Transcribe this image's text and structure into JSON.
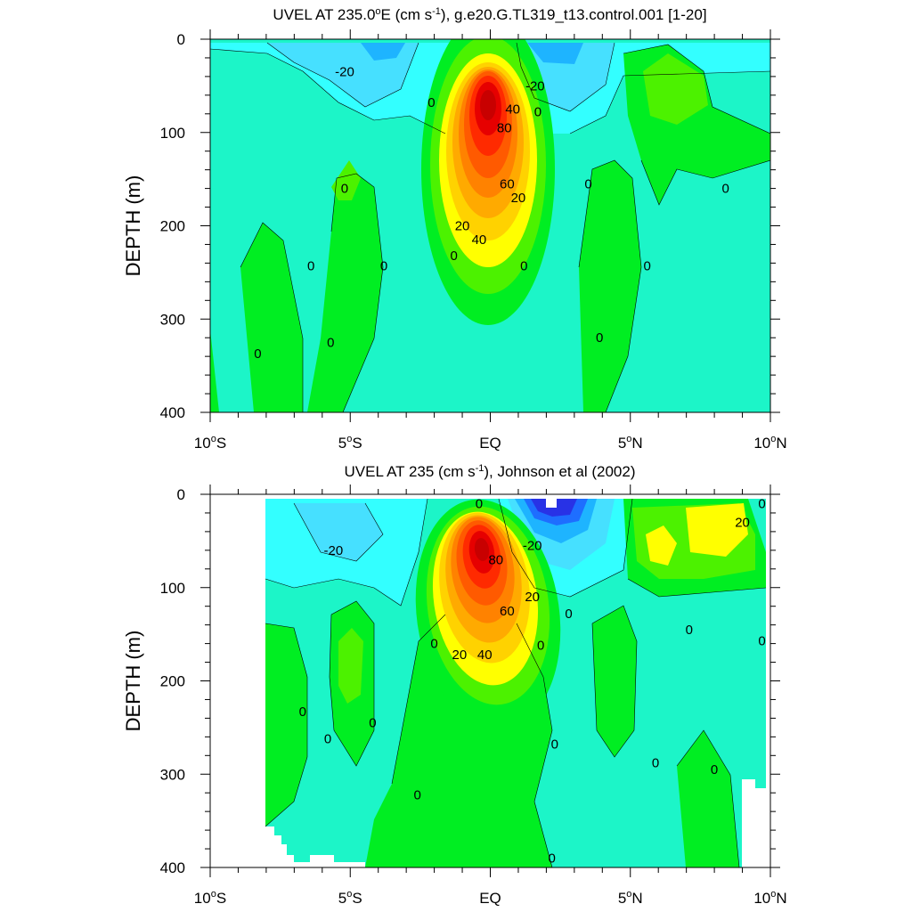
{
  "chart_data": [
    {
      "type": "contour",
      "title": "UVEL AT 235.0°E (cm s⁻¹), g.e20.G.TL319_t13.control.001 [1-20]",
      "title_parts": [
        "UVEL AT 235.0",
        "o",
        "E (cm s",
        "-1",
        "), g.e20.G.TL319_t13.control.001 [1-20]"
      ],
      "ylabel": "DEPTH (m)",
      "xlim": [
        -10,
        10
      ],
      "ylim": [
        400,
        0
      ],
      "yticks": [
        0,
        100,
        200,
        300,
        400
      ],
      "ytick_labels": [
        "0",
        "100",
        "200",
        "300",
        "400"
      ],
      "xtick_labels": [
        {
          "text": "10",
          "sup": "o",
          "suf": "S"
        },
        {
          "text": "5",
          "sup": "o",
          "suf": "S"
        },
        {
          "text": "EQ",
          "sup": "",
          "suf": ""
        },
        {
          "text": "5",
          "sup": "o",
          "suf": "N"
        },
        {
          "text": "10",
          "sup": "o",
          "suf": "N"
        }
      ],
      "features": [
        {
          "name": "EUC core",
          "lon": 0,
          "depth": 110,
          "peak": 90
        },
        {
          "name": "surface westward flow",
          "lon": 2.3,
          "depth": 10,
          "peak": -30
        },
        {
          "name": "surface westward flow S",
          "lon": -4,
          "depth": 10,
          "peak": -25
        }
      ],
      "contour_labels": [
        {
          "text": "-20",
          "lon": -5.2,
          "depth": 35
        },
        {
          "text": "-20",
          "lon": 1.6,
          "depth": 50
        },
        {
          "text": "0",
          "lon": -2.1,
          "depth": 68
        },
        {
          "text": "0",
          "lon": 1.7,
          "depth": 78
        },
        {
          "text": "40",
          "lon": 0.8,
          "depth": 75
        },
        {
          "text": "80",
          "lon": 0.5,
          "depth": 95
        },
        {
          "text": "60",
          "lon": 0.6,
          "depth": 155
        },
        {
          "text": "20",
          "lon": 1.0,
          "depth": 170
        },
        {
          "text": "20",
          "lon": -1.0,
          "depth": 200
        },
        {
          "text": "40",
          "lon": -0.4,
          "depth": 215
        },
        {
          "text": "0",
          "lon": -5.2,
          "depth": 160
        },
        {
          "text": "0",
          "lon": 3.5,
          "depth": 155
        },
        {
          "text": "0",
          "lon": 8.4,
          "depth": 160
        },
        {
          "text": "0",
          "lon": -6.4,
          "depth": 243
        },
        {
          "text": "0",
          "lon": -3.8,
          "depth": 243
        },
        {
          "text": "0",
          "lon": -1.3,
          "depth": 232
        },
        {
          "text": "0",
          "lon": 1.2,
          "depth": 243
        },
        {
          "text": "0",
          "lon": 5.6,
          "depth": 243
        },
        {
          "text": "0",
          "lon": 3.9,
          "depth": 320
        },
        {
          "text": "0",
          "lon": -8.3,
          "depth": 337
        },
        {
          "text": "0",
          "lon": -5.7,
          "depth": 325
        }
      ]
    },
    {
      "type": "contour",
      "title": "UVEL AT 235 (cm s⁻¹), Johnson et al (2002)",
      "title_parts": [
        "UVEL AT 235 (cm s",
        "-1",
        "), Johnson et al (2002)"
      ],
      "ylabel": "DEPTH (m)",
      "xlim": [
        -10,
        10
      ],
      "ylim": [
        400,
        0
      ],
      "yticks": [
        0,
        100,
        200,
        300,
        400
      ],
      "ytick_labels": [
        "0",
        "100",
        "200",
        "300",
        "400"
      ],
      "xtick_labels": [
        {
          "text": "10",
          "sup": "o",
          "suf": "S"
        },
        {
          "text": "5",
          "sup": "o",
          "suf": "S"
        },
        {
          "text": "EQ",
          "sup": "",
          "suf": ""
        },
        {
          "text": "5",
          "sup": "o",
          "suf": "N"
        },
        {
          "text": "10",
          "sup": "o",
          "suf": "N"
        }
      ],
      "features": [
        {
          "name": "EUC core",
          "lon": -0.3,
          "depth": 85,
          "peak": 95
        },
        {
          "name": "surface westward flow",
          "lon": 2.2,
          "depth": 15,
          "peak": -45
        },
        {
          "name": "surface eastward flow N",
          "lon": 8.5,
          "depth": 30,
          "peak": 30
        }
      ],
      "contour_labels": [
        {
          "text": "0",
          "lon": -0.4,
          "depth": 10
        },
        {
          "text": "-20",
          "lon": -5.6,
          "depth": 60
        },
        {
          "text": "-20",
          "lon": 1.5,
          "depth": 55
        },
        {
          "text": "80",
          "lon": 0.2,
          "depth": 70
        },
        {
          "text": "20",
          "lon": 9.0,
          "depth": 30
        },
        {
          "text": "0",
          "lon": 9.7,
          "depth": 10
        },
        {
          "text": "20",
          "lon": 1.5,
          "depth": 110
        },
        {
          "text": "60",
          "lon": 0.6,
          "depth": 125
        },
        {
          "text": "0",
          "lon": 2.8,
          "depth": 128
        },
        {
          "text": "0",
          "lon": -2.0,
          "depth": 160
        },
        {
          "text": "20",
          "lon": -1.1,
          "depth": 172
        },
        {
          "text": "40",
          "lon": -0.2,
          "depth": 172
        },
        {
          "text": "0",
          "lon": 1.8,
          "depth": 162
        },
        {
          "text": "0",
          "lon": 7.1,
          "depth": 145
        },
        {
          "text": "0",
          "lon": 9.7,
          "depth": 157
        },
        {
          "text": "0",
          "lon": -6.7,
          "depth": 233
        },
        {
          "text": "0",
          "lon": -4.2,
          "depth": 245
        },
        {
          "text": "0",
          "lon": -5.8,
          "depth": 262
        },
        {
          "text": "0",
          "lon": 2.3,
          "depth": 268
        },
        {
          "text": "0",
          "lon": 5.9,
          "depth": 288
        },
        {
          "text": "0",
          "lon": 8.0,
          "depth": 295
        },
        {
          "text": "0",
          "lon": -2.6,
          "depth": 322
        },
        {
          "text": "0",
          "lon": 2.2,
          "depth": 390
        }
      ]
    }
  ]
}
